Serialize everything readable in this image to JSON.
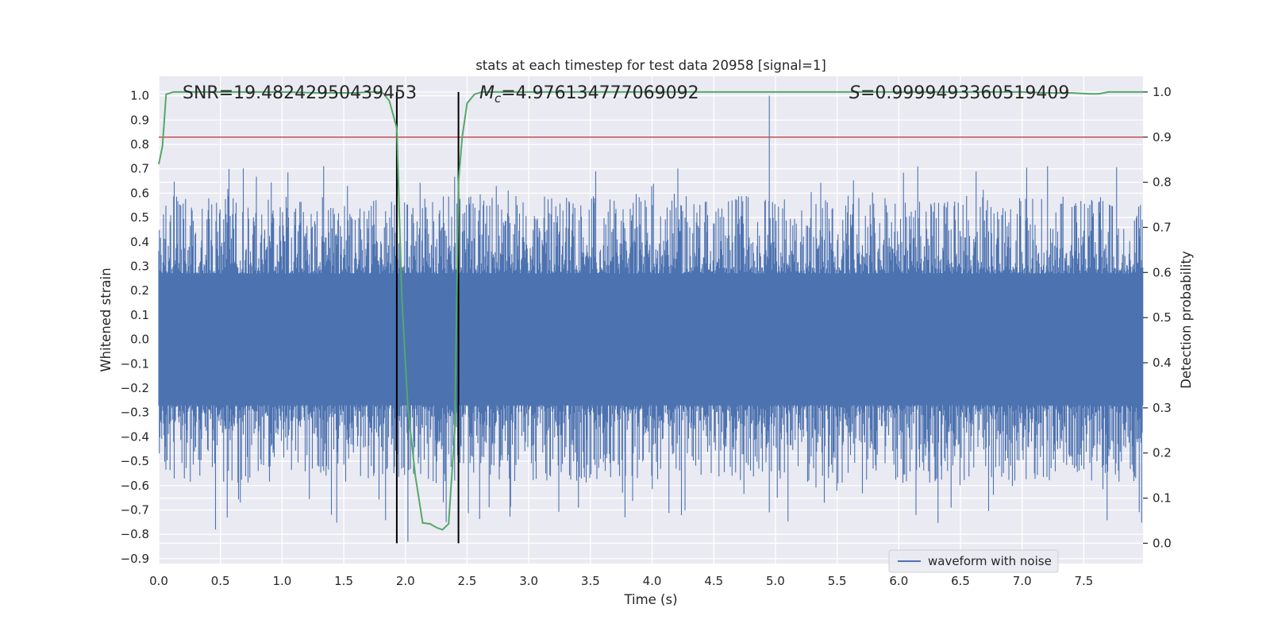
{
  "chart_data": {
    "type": "line",
    "title": "stats at each timestep for test data 20958 [signal=1]",
    "xlabel": "Time (s)",
    "ylabel_left": "Whitened strain",
    "ylabel_right": "Detection probability",
    "xlim": [
      0.0,
      7.98
    ],
    "ylim_left": [
      -0.92,
      1.08
    ],
    "ylim_right": [
      -0.045,
      1.035
    ],
    "xticks": [
      "0.0",
      "0.5",
      "1.0",
      "1.5",
      "2.0",
      "2.5",
      "3.0",
      "3.5",
      "4.0",
      "4.5",
      "5.0",
      "5.5",
      "6.0",
      "6.5",
      "7.0",
      "7.5"
    ],
    "yticks_left": [
      "1.0",
      "0.9",
      "0.8",
      "0.7",
      "0.6",
      "0.5",
      "0.4",
      "0.3",
      "0.2",
      "0.1",
      "0.0",
      "−0.1",
      "−0.2",
      "−0.3",
      "−0.4",
      "−0.5",
      "−0.6",
      "−0.7",
      "−0.8",
      "−0.9"
    ],
    "yticks_right": [
      "1.0",
      "0.9",
      "0.8",
      "0.7",
      "0.6",
      "0.5",
      "0.4",
      "0.3",
      "0.2",
      "0.1",
      "0.0"
    ],
    "annotations": {
      "snr": "SNR=19.48242950439453",
      "mc_symbol": "M",
      "mc_sub": "c",
      "mc_value": "=4.976134777069092",
      "s_symbol": "S",
      "s_value": "=0.9999493360519409"
    },
    "threshold_right": 0.9,
    "signal_window": [
      1.93,
      2.43
    ],
    "legend": "waveform with noise",
    "colors": {
      "background": "#eaeaf2",
      "waveform": "#4c72b0",
      "probability": "#55a868",
      "threshold": "#c44e52",
      "vline": "#000000",
      "grid": "#ffffff"
    },
    "series": [
      {
        "name": "waveform with noise",
        "axis": "left",
        "description": "noisy whitened strain, dense noise band approx ±0.45 with spikes",
        "envelope_peaks": [
          {
            "x": 0.46,
            "y": -0.78
          },
          {
            "x": 1.4,
            "y": -0.72
          },
          {
            "x": 2.02,
            "y": -0.83
          },
          {
            "x": 2.33,
            "y": -0.75
          },
          {
            "x": 4.95,
            "y": 1.0
          },
          {
            "x": 4.95,
            "y": -0.71
          },
          {
            "x": 3.78,
            "y": -0.73
          }
        ]
      },
      {
        "name": "detection probability",
        "axis": "right",
        "x": [
          0.0,
          0.03,
          0.06,
          0.12,
          0.2,
          0.5,
          1.0,
          1.3,
          1.6,
          1.7,
          1.78,
          1.82,
          1.87,
          1.93,
          1.97,
          2.02,
          2.08,
          2.14,
          2.2,
          2.25,
          2.3,
          2.35,
          2.4,
          2.43,
          2.46,
          2.5,
          2.56,
          2.62,
          3.0,
          4.0,
          5.0,
          6.0,
          7.0,
          7.2,
          7.4,
          7.55,
          7.62,
          7.7,
          7.98
        ],
        "y": [
          0.84,
          0.88,
          0.995,
          1.0,
          1.0,
          1.0,
          1.0,
          0.998,
          0.998,
          1.0,
          1.0,
          0.997,
          0.98,
          0.92,
          0.55,
          0.3,
          0.15,
          0.045,
          0.043,
          0.035,
          0.03,
          0.043,
          0.25,
          0.8,
          0.9,
          0.975,
          0.995,
          1.0,
          1.0,
          1.0,
          1.0,
          1.0,
          1.0,
          0.998,
          0.998,
          0.996,
          0.996,
          1.0,
          1.0
        ]
      }
    ]
  }
}
